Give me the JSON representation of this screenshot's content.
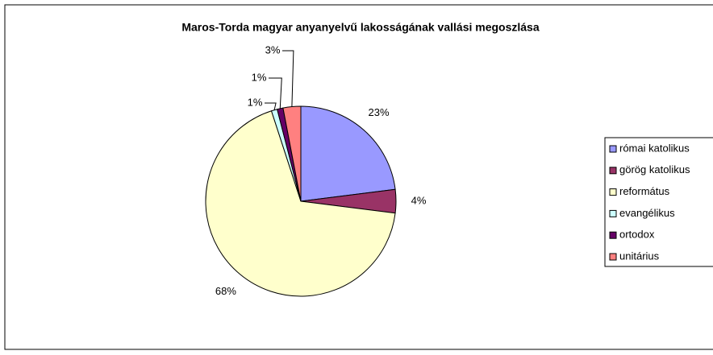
{
  "chart_data": {
    "type": "pie",
    "title": "Maros-Torda magyar anyanyelvű lakosságának vallási megoszlása",
    "categories": [
      "római katolikus",
      "görög katolikus",
      "református",
      "evangélikus",
      "ortodox",
      "unitárius"
    ],
    "values": [
      23,
      4,
      68,
      1,
      1,
      3
    ],
    "value_labels": [
      "23%",
      "4%",
      "68%",
      "1%",
      "1%",
      "3%"
    ],
    "colors": [
      "#9999ff",
      "#993366",
      "#ffffcc",
      "#ccffff",
      "#660066",
      "#ff8080"
    ],
    "legend": "right"
  }
}
